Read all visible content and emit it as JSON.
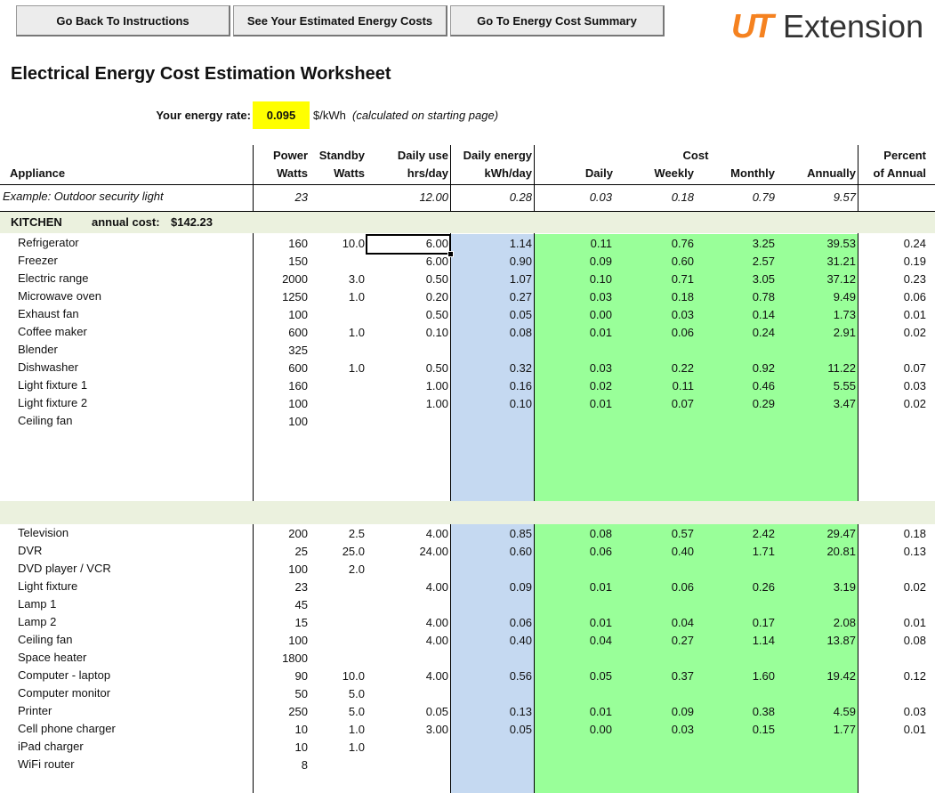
{
  "buttons": [
    "Go Back To Instructions",
    "See Your Estimated Energy Costs",
    "Go To Energy Cost Summary"
  ],
  "logo": {
    "mark": "UT",
    "text": "Extension"
  },
  "title": "Electrical Energy Cost Estimation Worksheet",
  "rate": {
    "label": "Your energy rate:",
    "value": "0.095",
    "unit": "$/kWh",
    "note": "(calculated on starting page)"
  },
  "header": {
    "appliance": "Appliance",
    "power": [
      "Power",
      "Watts"
    ],
    "standby": [
      "Standby",
      "Watts"
    ],
    "use": [
      "Daily use",
      "hrs/day"
    ],
    "energy": [
      "Daily energy",
      "kWh/day"
    ],
    "cost": "Cost",
    "daily": "Daily",
    "weekly": "Weekly",
    "monthly": "Monthly",
    "annually": "Annually",
    "percent": [
      "Percent",
      "of Annual"
    ]
  },
  "example": [
    "Example: Outdoor security light",
    "23",
    null,
    "12.00",
    "0.28",
    "0.03",
    "0.18",
    "0.79",
    "9.57"
  ],
  "sections": [
    {
      "title": "KITCHEN",
      "annual_label": "annual cost:",
      "annual_value": "$142.23",
      "rows": [
        [
          "Refrigerator",
          "160",
          "10.0",
          "6.00",
          "1.14",
          "0.11",
          "0.76",
          "3.25",
          "39.53",
          "0.24"
        ],
        [
          "Freezer",
          "150",
          null,
          "6.00",
          "0.90",
          "0.09",
          "0.60",
          "2.57",
          "31.21",
          "0.19"
        ],
        [
          "Electric range",
          "2000",
          "3.0",
          "0.50",
          "1.07",
          "0.10",
          "0.71",
          "3.05",
          "37.12",
          "0.23"
        ],
        [
          "Microwave oven",
          "1250",
          "1.0",
          "0.20",
          "0.27",
          "0.03",
          "0.18",
          "0.78",
          "9.49",
          "0.06"
        ],
        [
          "Exhaust fan",
          "100",
          null,
          "0.50",
          "0.05",
          "0.00",
          "0.03",
          "0.14",
          "1.73",
          "0.01"
        ],
        [
          "Coffee maker",
          "600",
          "1.0",
          "0.10",
          "0.08",
          "0.01",
          "0.06",
          "0.24",
          "2.91",
          "0.02"
        ],
        [
          "Blender",
          "325"
        ],
        [
          "Dishwasher",
          "600",
          "1.0",
          "0.50",
          "0.32",
          "0.03",
          "0.22",
          "0.92",
          "11.22",
          "0.07"
        ],
        [
          "Light fixture 1",
          "160",
          null,
          "1.00",
          "0.16",
          "0.02",
          "0.11",
          "0.46",
          "5.55",
          "0.03"
        ],
        [
          "Light fixture 2",
          "100",
          null,
          "1.00",
          "0.10",
          "0.01",
          "0.07",
          "0.29",
          "3.47",
          "0.02"
        ],
        [
          "Ceiling fan",
          "100"
        ]
      ]
    },
    {
      "rows": [
        [
          "Television",
          "200",
          "2.5",
          "4.00",
          "0.85",
          "0.08",
          "0.57",
          "2.42",
          "29.47",
          "0.18"
        ],
        [
          "DVR",
          "25",
          "25.0",
          "24.00",
          "0.60",
          "0.06",
          "0.40",
          "1.71",
          "20.81",
          "0.13"
        ],
        [
          "DVD player / VCR",
          "100",
          "2.0"
        ],
        [
          "Light fixture",
          "23",
          null,
          "4.00",
          "0.09",
          "0.01",
          "0.06",
          "0.26",
          "3.19",
          "0.02"
        ],
        [
          "Lamp 1",
          "45"
        ],
        [
          "Lamp 2",
          "15",
          null,
          "4.00",
          "0.06",
          "0.01",
          "0.04",
          "0.17",
          "2.08",
          "0.01"
        ],
        [
          "Ceiling fan",
          "100",
          null,
          "4.00",
          "0.40",
          "0.04",
          "0.27",
          "1.14",
          "13.87",
          "0.08"
        ],
        [
          "Space heater",
          "1800"
        ],
        [
          "Computer - laptop",
          "90",
          "10.0",
          "4.00",
          "0.56",
          "0.05",
          "0.37",
          "1.60",
          "19.42",
          "0.12"
        ],
        [
          "Computer monitor",
          "50",
          "5.0"
        ],
        [
          "Printer",
          "250",
          "5.0",
          "0.05",
          "0.13",
          "0.01",
          "0.09",
          "0.38",
          "4.59",
          "0.03"
        ],
        [
          "Cell phone charger",
          "10",
          "1.0",
          "3.00",
          "0.05",
          "0.00",
          "0.03",
          "0.15",
          "1.77",
          "0.01"
        ],
        [
          "iPad charger",
          "10",
          "1.0"
        ],
        [
          "WiFi router",
          "8"
        ]
      ]
    }
  ]
}
